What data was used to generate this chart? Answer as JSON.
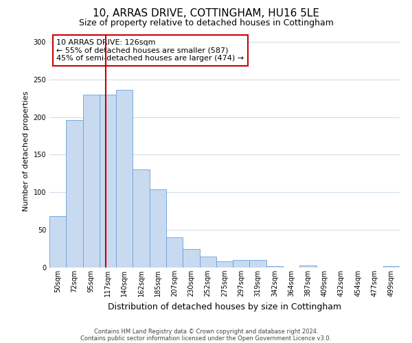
{
  "title": "10, ARRAS DRIVE, COTTINGHAM, HU16 5LE",
  "subtitle": "Size of property relative to detached houses in Cottingham",
  "xlabel": "Distribution of detached houses by size in Cottingham",
  "ylabel": "Number of detached properties",
  "bar_labels": [
    "50sqm",
    "72sqm",
    "95sqm",
    "117sqm",
    "140sqm",
    "162sqm",
    "185sqm",
    "207sqm",
    "230sqm",
    "252sqm",
    "275sqm",
    "297sqm",
    "319sqm",
    "342sqm",
    "364sqm",
    "387sqm",
    "409sqm",
    "432sqm",
    "454sqm",
    "477sqm",
    "499sqm"
  ],
  "bar_values": [
    68,
    196,
    230,
    230,
    236,
    130,
    104,
    40,
    25,
    15,
    8,
    10,
    10,
    2,
    0,
    3,
    0,
    0,
    0,
    0,
    2
  ],
  "bar_color": "#c8daf0",
  "bar_edge_color": "#6a9fd8",
  "background_color": "#ffffff",
  "grid_color": "#d0dde8",
  "vline_color": "#cc0000",
  "annotation_text": "10 ARRAS DRIVE: 126sqm\n← 55% of detached houses are smaller (587)\n45% of semi-detached houses are larger (474) →",
  "annotation_box_color": "#ffffff",
  "annotation_box_edge_color": "#cc0000",
  "ylim": [
    0,
    310
  ],
  "yticks": [
    0,
    50,
    100,
    150,
    200,
    250,
    300
  ],
  "footer_line1": "Contains HM Land Registry data © Crown copyright and database right 2024.",
  "footer_line2": "Contains public sector information licensed under the Open Government Licence v3.0.",
  "title_fontsize": 11,
  "subtitle_fontsize": 9,
  "xlabel_fontsize": 9,
  "ylabel_fontsize": 8,
  "tick_fontsize": 7,
  "annotation_fontsize": 8,
  "footer_fontsize": 6
}
